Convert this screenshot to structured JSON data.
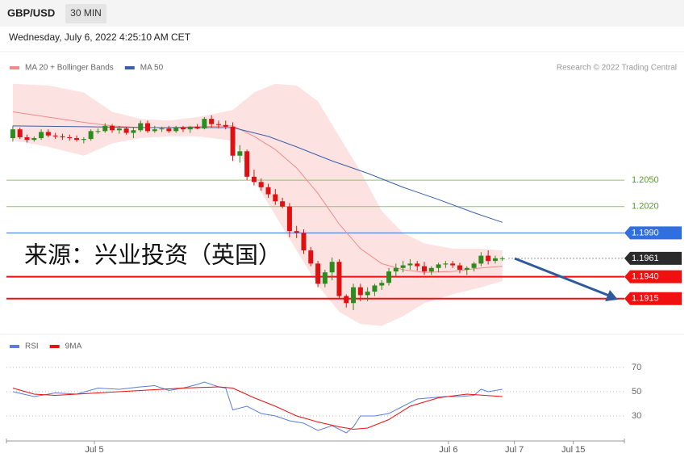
{
  "header": {
    "symbol": "GBP/USD",
    "timeframe": "30 MIN",
    "datetime": "Wednesday, July 6, 2022 4:25:10 AM CET"
  },
  "chart_data": [
    {
      "type": "candlestick",
      "credit": "Research © 2022 Trading Central",
      "annotation": "来源：兴业投资（英国）",
      "up_color": "#2e8b1e",
      "down_color": "#e01010",
      "xlim": [
        -0.9,
        86.2
      ],
      "ylim": [
        1.1878,
        1.2168
      ],
      "ohlc": [
        [
          1.2098,
          1.2112,
          1.2094,
          1.2108
        ],
        [
          1.2108,
          1.211,
          1.2097,
          1.2099
        ],
        [
          1.2099,
          1.2102,
          1.2093,
          1.2096
        ],
        [
          1.2096,
          1.21,
          1.2094,
          1.2098
        ],
        [
          1.2098,
          1.2108,
          1.2096,
          1.2105
        ],
        [
          1.2105,
          1.2108,
          1.2099,
          1.2101
        ],
        [
          1.2101,
          1.2104,
          1.2097,
          1.21
        ],
        [
          1.21,
          1.2103,
          1.2096,
          1.2099
        ],
        [
          1.2099,
          1.2102,
          1.2095,
          1.2098
        ],
        [
          1.2098,
          1.2101,
          1.2094,
          1.2096
        ],
        [
          1.2096,
          1.2099,
          1.2092,
          1.2097
        ],
        [
          1.2097,
          1.2108,
          1.2095,
          1.2106
        ],
        [
          1.2106,
          1.2109,
          1.2103,
          1.2106
        ],
        [
          1.2106,
          1.2115,
          1.2104,
          1.2112
        ],
        [
          1.2112,
          1.2114,
          1.2104,
          1.2107
        ],
        [
          1.2107,
          1.2112,
          1.2103,
          1.2109
        ],
        [
          1.2109,
          1.2111,
          1.2102,
          1.2104
        ],
        [
          1.2104,
          1.211,
          1.2098,
          1.2107
        ],
        [
          1.2107,
          1.2118,
          1.2105,
          1.2115
        ],
        [
          1.2115,
          1.2118,
          1.2104,
          1.2106
        ],
        [
          1.2106,
          1.2112,
          1.2104,
          1.2108
        ],
        [
          1.2108,
          1.2111,
          1.2105,
          1.2109
        ],
        [
          1.2109,
          1.2112,
          1.2104,
          1.2106
        ],
        [
          1.2106,
          1.2112,
          1.2104,
          1.211
        ],
        [
          1.211,
          1.2112,
          1.2105,
          1.2108
        ],
        [
          1.2108,
          1.2112,
          1.2104,
          1.2111
        ],
        [
          1.2111,
          1.2114,
          1.2108,
          1.2109
        ],
        [
          1.2109,
          1.2122,
          1.2108,
          1.212
        ],
        [
          1.212,
          1.2124,
          1.211,
          1.2114
        ],
        [
          1.2114,
          1.2118,
          1.2109,
          1.2113
        ],
        [
          1.2113,
          1.2118,
          1.2108,
          1.2111
        ],
        [
          1.2111,
          1.2116,
          1.2072,
          1.2078
        ],
        [
          1.2078,
          1.209,
          1.207,
          1.2083
        ],
        [
          1.2083,
          1.2085,
          1.205,
          1.2054
        ],
        [
          1.2054,
          1.2062,
          1.2044,
          1.2048
        ],
        [
          1.2048,
          1.2052,
          1.2038,
          1.2042
        ],
        [
          1.2042,
          1.2046,
          1.203,
          1.2034
        ],
        [
          1.2034,
          1.204,
          1.2022,
          1.2026
        ],
        [
          1.2026,
          1.203,
          1.2018,
          1.202
        ],
        [
          1.202,
          1.2024,
          1.1985,
          1.1992
        ],
        [
          1.1992,
          1.1998,
          1.1984,
          1.199
        ],
        [
          1.199,
          1.1994,
          1.1966,
          1.197
        ],
        [
          1.197,
          1.1974,
          1.1952,
          1.1955
        ],
        [
          1.1955,
          1.1958,
          1.1928,
          1.1932
        ],
        [
          1.1932,
          1.1948,
          1.1928,
          1.1945
        ],
        [
          1.1945,
          1.1962,
          1.1936,
          1.1957
        ],
        [
          1.1957,
          1.196,
          1.1915,
          1.1918
        ],
        [
          1.1918,
          1.192,
          1.1905,
          1.191
        ],
        [
          1.191,
          1.1932,
          1.1902,
          1.1928
        ],
        [
          1.1928,
          1.1932,
          1.1912,
          1.1919
        ],
        [
          1.1919,
          1.1928,
          1.1912,
          1.1923
        ],
        [
          1.1923,
          1.1932,
          1.1918,
          1.193
        ],
        [
          1.193,
          1.1936,
          1.1925,
          1.1933
        ],
        [
          1.1933,
          1.195,
          1.193,
          1.1946
        ],
        [
          1.1946,
          1.1955,
          1.194,
          1.195
        ],
        [
          1.195,
          1.1958,
          1.1945,
          1.1953
        ],
        [
          1.1953,
          1.196,
          1.1948,
          1.1955
        ],
        [
          1.1955,
          1.1958,
          1.1947,
          1.1952
        ],
        [
          1.1952,
          1.1957,
          1.1942,
          1.1946
        ],
        [
          1.1946,
          1.1952,
          1.1942,
          1.195
        ],
        [
          1.195,
          1.1956,
          1.1945,
          1.1954
        ],
        [
          1.1954,
          1.1958,
          1.195,
          1.1955
        ],
        [
          1.1955,
          1.1958,
          1.195,
          1.1953
        ],
        [
          1.1953,
          1.1956,
          1.1944,
          1.1948
        ],
        [
          1.1948,
          1.1952,
          1.1942,
          1.195
        ],
        [
          1.195,
          1.1957,
          1.1946,
          1.1955
        ],
        [
          1.1955,
          1.1968,
          1.1952,
          1.1964
        ],
        [
          1.1964,
          1.197,
          1.1954,
          1.1958
        ],
        [
          1.1958,
          1.1964,
          1.1955,
          1.1961
        ],
        [
          1.1961,
          1.1963,
          1.1958,
          1.1961
        ]
      ],
      "series": [
        {
          "name": "MA 20 + Bollinger Bands",
          "color": "#f08a8a",
          "band_color": "#fde2e2",
          "x": [
            0,
            5,
            10,
            14,
            18,
            22,
            26,
            31,
            34,
            37,
            40,
            43,
            46,
            49,
            52,
            55,
            58,
            62,
            66,
            69
          ],
          "values": [
            1.2128,
            1.2122,
            1.2116,
            1.2112,
            1.211,
            1.211,
            1.2111,
            1.2112,
            1.21,
            1.2085,
            1.2064,
            1.2035,
            1.2,
            1.1972,
            1.1955,
            1.1948,
            1.1945,
            1.1946,
            1.195,
            1.1952
          ],
          "upper": [
            1.216,
            1.2158,
            1.215,
            1.2128,
            1.212,
            1.2118,
            1.2122,
            1.213,
            1.215,
            1.216,
            1.2158,
            1.214,
            1.21,
            1.206,
            1.2015,
            1.199,
            1.1978,
            1.1972,
            1.1972,
            1.197
          ],
          "lower": [
            1.2096,
            1.2088,
            1.2078,
            1.2092,
            1.2098,
            1.21,
            1.21,
            1.2095,
            1.205,
            1.201,
            1.197,
            1.193,
            1.19,
            1.1886,
            1.1884,
            1.1895,
            1.191,
            1.192,
            1.1928,
            1.1935
          ]
        },
        {
          "name": "MA 50",
          "color": "#3a5fa8",
          "x": [
            0,
            10,
            20,
            31,
            36,
            40,
            45,
            50,
            55,
            60,
            65,
            69
          ],
          "values": [
            1.2112,
            1.2111,
            1.211,
            1.211,
            1.21,
            1.2088,
            1.2072,
            1.2058,
            1.2042,
            1.2028,
            1.2013,
            1.2002
          ]
        }
      ],
      "levels": [
        {
          "value": 1.205,
          "label": "1.2050",
          "color": "#8dc26a",
          "text_color": "#5a9a20",
          "tag": false,
          "style": "solid"
        },
        {
          "value": 1.202,
          "label": "1.2020",
          "color": "#8dc26a",
          "text_color": "#5a9a20",
          "tag": false,
          "style": "solid"
        },
        {
          "value": 1.199,
          "label": "1.1990",
          "color": "#2f6fe0",
          "text_color": "#ffffff",
          "tag": true,
          "style": "solid"
        },
        {
          "value": 1.1961,
          "label": "1.1961",
          "color": "#2b2b2b",
          "text_color": "#ffffff",
          "tag": true,
          "style": "dotted"
        },
        {
          "value": 1.194,
          "label": "1.1940",
          "color": "#f01010",
          "text_color": "#ffffff",
          "tag": true,
          "style": "solid"
        },
        {
          "value": 1.1915,
          "label": "1.1915",
          "color": "#f01010",
          "text_color": "#ffffff",
          "tag": true,
          "style": "solid"
        }
      ]
    },
    {
      "type": "line",
      "xlim": [
        -0.9,
        86.2
      ],
      "ylim": [
        10,
        80
      ],
      "yticks": [
        70,
        50,
        30
      ],
      "xticks": [
        {
          "value": 11.5,
          "label": "Jul 5"
        },
        {
          "value": 61.4,
          "label": "Jul 6"
        },
        {
          "value": 70.7,
          "label": "Jul 7"
        },
        {
          "value": 79,
          "label": "Jul 15"
        }
      ],
      "series": [
        {
          "name": "RSI",
          "color": "#5b7fd8",
          "x": [
            0,
            3,
            6,
            9,
            12,
            15,
            18,
            20,
            22,
            24,
            26,
            27,
            29,
            30,
            31,
            33,
            35,
            37,
            39,
            41,
            43,
            45,
            47,
            48,
            49,
            51,
            53,
            55,
            57,
            59,
            61,
            63,
            65,
            66,
            67,
            69
          ],
          "values": [
            50,
            46,
            49,
            48,
            53,
            52,
            54,
            55,
            51,
            53,
            56,
            58,
            54,
            53,
            35,
            38,
            32,
            30,
            26,
            24,
            18,
            22,
            16,
            21,
            30,
            30,
            32,
            38,
            44,
            45,
            46,
            46,
            47,
            52,
            50,
            52
          ]
        },
        {
          "name": "9MA",
          "color": "#e81010",
          "x": [
            0,
            3,
            6,
            12,
            18,
            24,
            29,
            31,
            34,
            37,
            40,
            43,
            46,
            48,
            50,
            53,
            56,
            60,
            64,
            69
          ],
          "values": [
            53,
            48,
            47,
            49,
            51,
            53,
            54,
            53,
            45,
            38,
            30,
            25,
            21,
            19,
            20,
            27,
            38,
            45,
            48,
            46
          ]
        }
      ]
    }
  ]
}
